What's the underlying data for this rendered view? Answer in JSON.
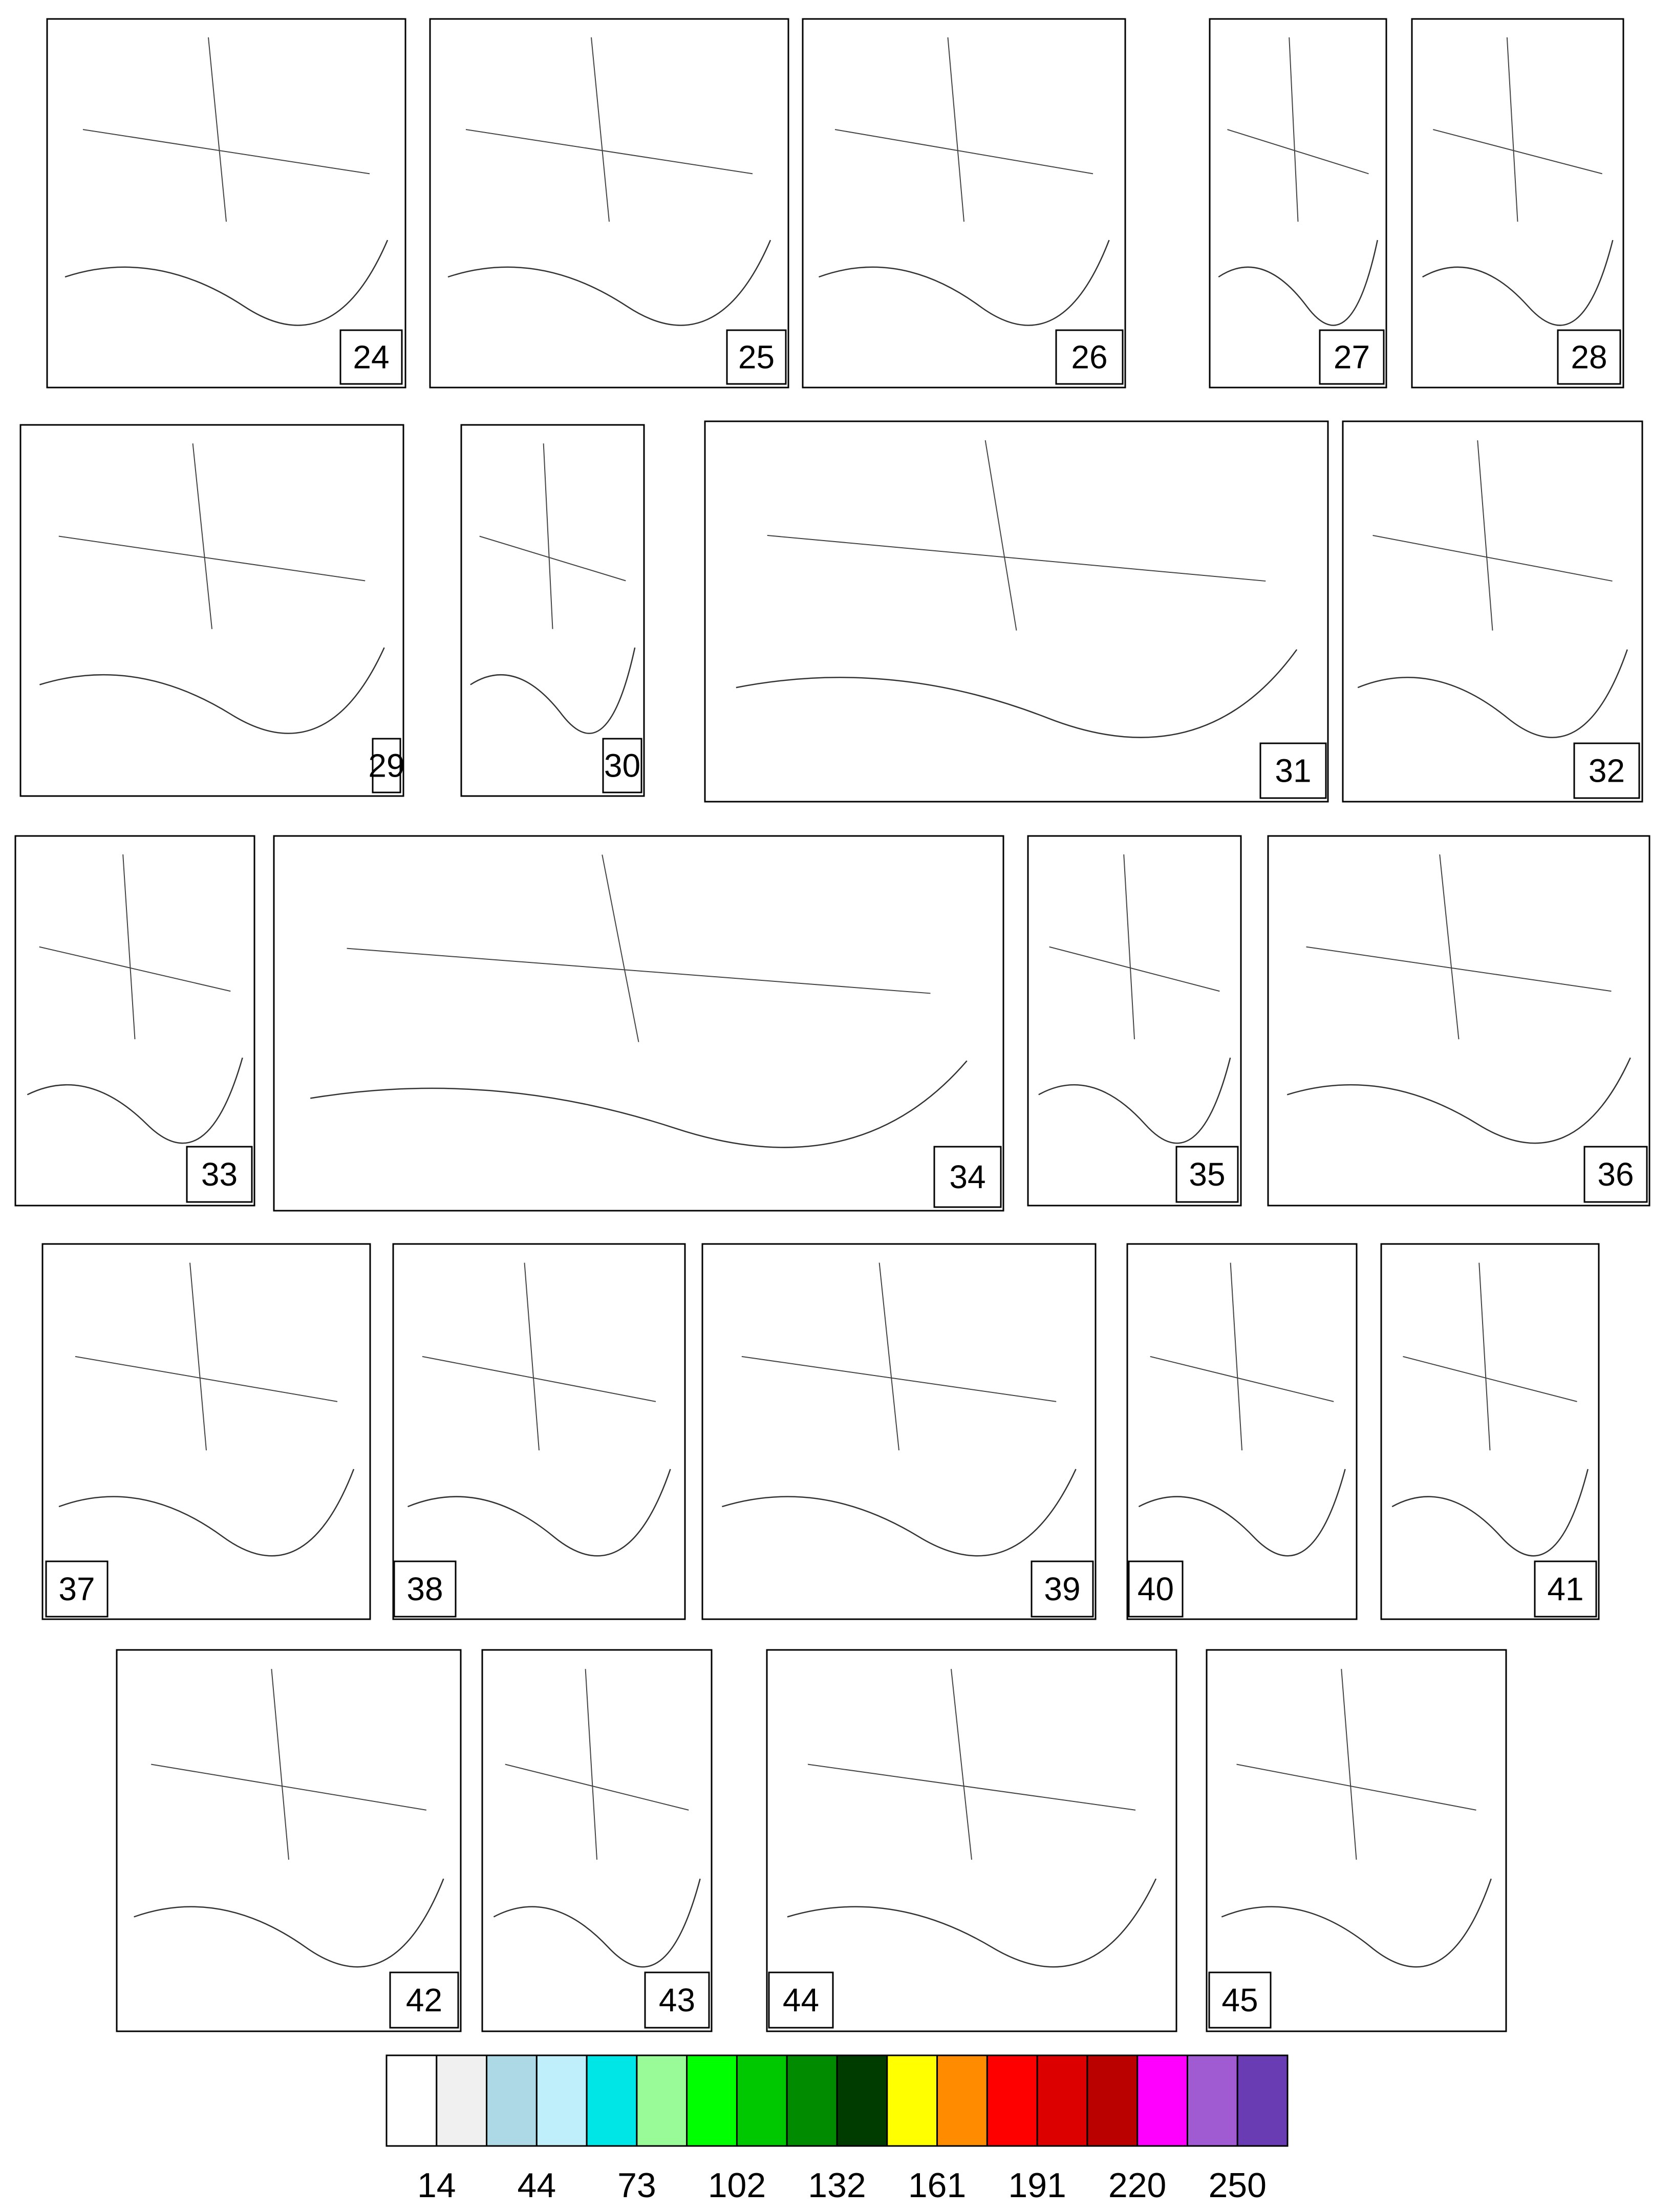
{
  "panels": [
    {
      "label": "24"
    },
    {
      "label": "25"
    },
    {
      "label": "26"
    },
    {
      "label": "27"
    },
    {
      "label": "28"
    },
    {
      "label": "29"
    },
    {
      "label": "30"
    },
    {
      "label": "31"
    },
    {
      "label": "32"
    },
    {
      "label": "33"
    },
    {
      "label": "34"
    },
    {
      "label": "35"
    },
    {
      "label": "36"
    },
    {
      "label": "37"
    },
    {
      "label": "38"
    },
    {
      "label": "39"
    },
    {
      "label": "40"
    },
    {
      "label": "41"
    },
    {
      "label": "42"
    },
    {
      "label": "43"
    },
    {
      "label": "44"
    },
    {
      "label": "45"
    }
  ],
  "colorbar": {
    "colors": [
      "#ffffff",
      "#f0f0f0",
      "#add8e6",
      "#bfeffa",
      "#00e5e5",
      "#98fb98",
      "#00ff00",
      "#00c800",
      "#008b00",
      "#003c00",
      "#ffff00",
      "#ff8c00",
      "#ff0000",
      "#dd0000",
      "#bb0000",
      "#ff00ff",
      "#a05ad2",
      "#6a3cb4"
    ],
    "tick_labels": [
      "14",
      "44",
      "73",
      "102",
      "132",
      "161",
      "191",
      "220",
      "250"
    ]
  }
}
